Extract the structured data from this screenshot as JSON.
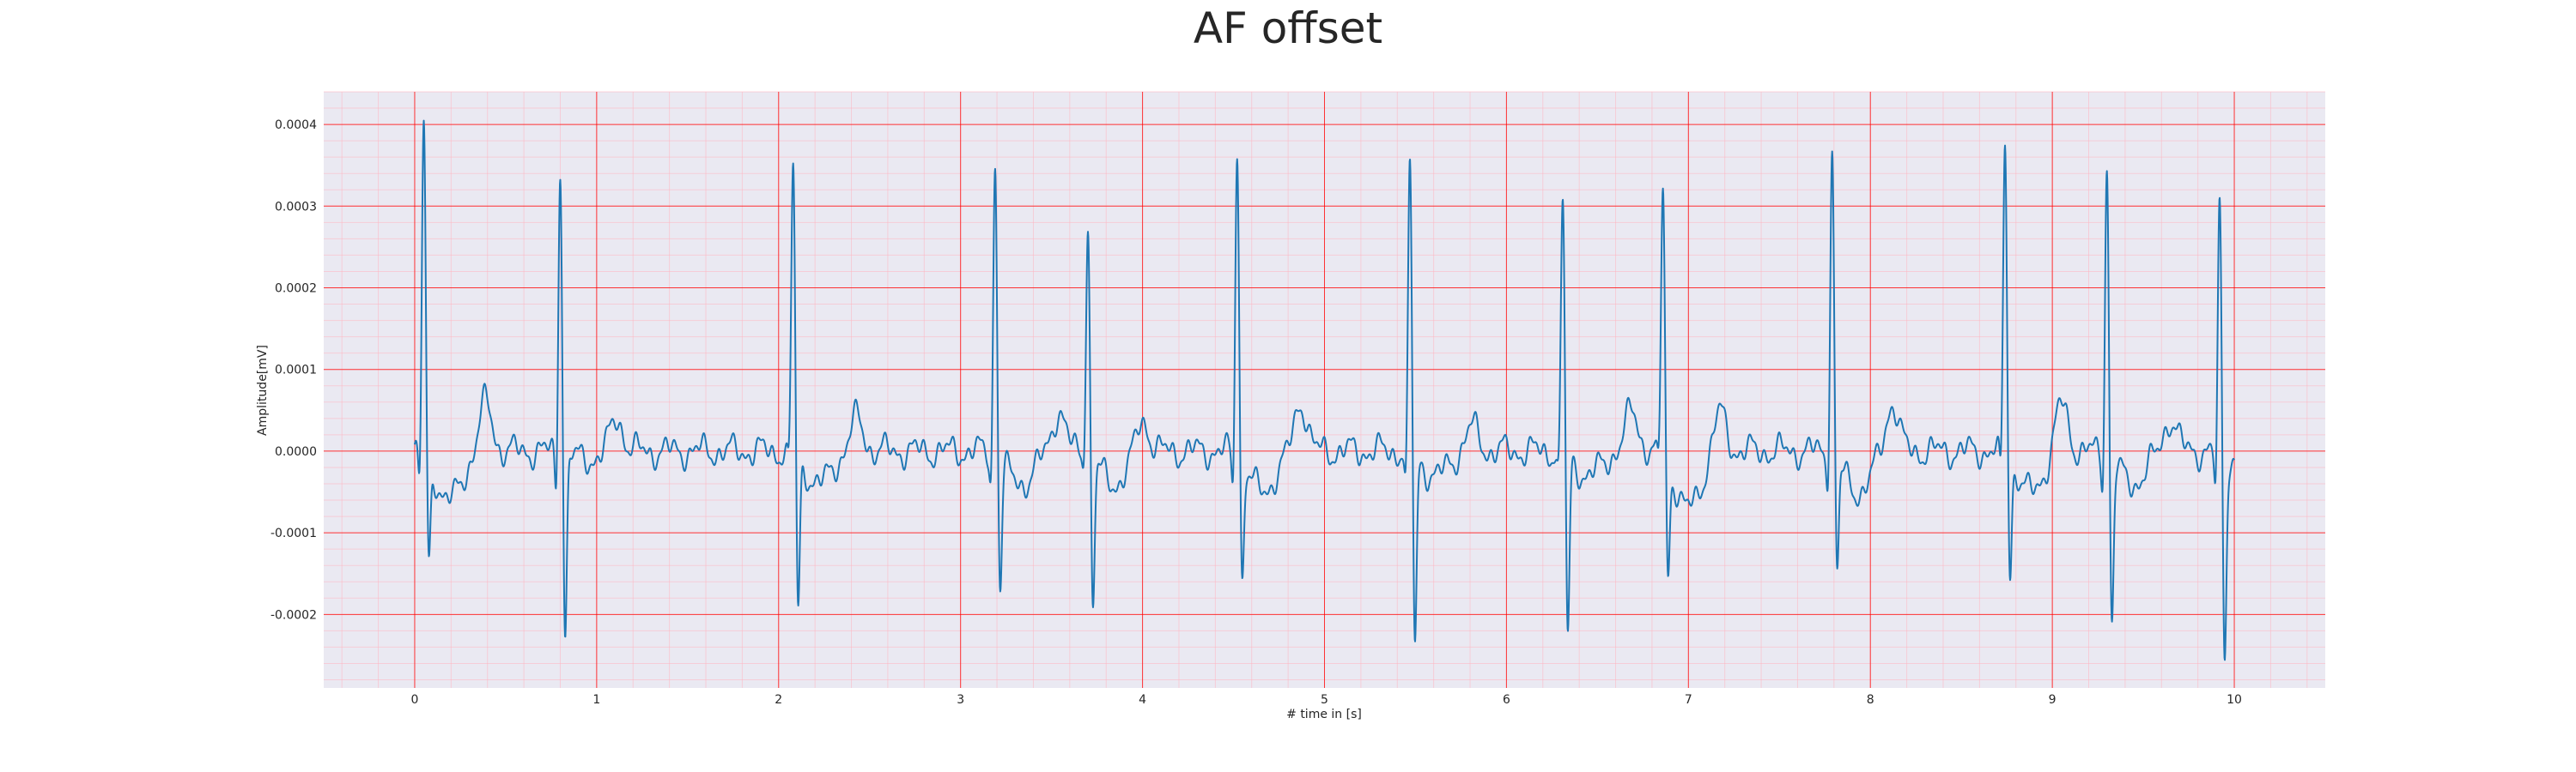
{
  "chart_data": {
    "type": "line",
    "title": "AF offset",
    "xlabel": "# time in [s]",
    "ylabel": "Amplitude[mV]",
    "xlim": [
      -0.5,
      10.5
    ],
    "ylim": [
      -0.00029,
      0.00044
    ],
    "x_ticks": [
      0,
      1,
      2,
      3,
      4,
      5,
      6,
      7,
      8,
      9,
      10
    ],
    "x_tick_labels": [
      "0",
      "1",
      "2",
      "3",
      "4",
      "5",
      "6",
      "7",
      "8",
      "9",
      "10"
    ],
    "y_ticks": [
      -0.0002,
      -0.0001,
      0.0,
      0.0001,
      0.0002,
      0.0003,
      0.0004
    ],
    "y_tick_labels": [
      "-0.0002",
      "-0.0001",
      "0.0000",
      "0.0001",
      "0.0002",
      "0.0003",
      "0.0004"
    ],
    "minor_grid_step_x": 0.2,
    "minor_grid_step_y": 2e-05,
    "grid": true,
    "beats": [
      {
        "t": 0.05,
        "r": 0.00041,
        "q": -7e-05,
        "s": -0.00014,
        "st": -6e-05
      },
      {
        "t": 0.8,
        "r": 0.00036,
        "q": -8e-05,
        "s": -0.00024,
        "st": -1e-05
      },
      {
        "t": 2.08,
        "r": 0.00036,
        "q": -4e-05,
        "s": -0.0002,
        "st": -4e-05
      },
      {
        "t": 3.19,
        "r": 0.00037,
        "q": -7e-05,
        "s": -0.00017,
        "st": -4e-05
      },
      {
        "t": 3.7,
        "r": 0.00029,
        "q": -3e-05,
        "s": -0.00019,
        "st": -4e-05
      },
      {
        "t": 4.52,
        "r": 0.00039,
        "q": -8e-05,
        "s": -0.00016,
        "st": -5e-05
      },
      {
        "t": 5.47,
        "r": 0.00036,
        "q": -7e-05,
        "s": -0.00025,
        "st": -3e-05
      },
      {
        "t": 6.31,
        "r": 0.00032,
        "q": -5e-05,
        "s": -0.00024,
        "st": -3e-05
      },
      {
        "t": 6.86,
        "r": 0.00034,
        "q": -4e-05,
        "s": -0.00015,
        "st": -7e-05
      },
      {
        "t": 7.79,
        "r": 0.00038,
        "q": -6e-05,
        "s": -0.00015,
        "st": -5e-05
      },
      {
        "t": 8.74,
        "r": 0.00039,
        "q": -6e-05,
        "s": -0.00015,
        "st": -5e-05
      },
      {
        "t": 9.3,
        "r": 0.00037,
        "q": -7e-05,
        "s": -0.00022,
        "st": -4e-05
      },
      {
        "t": 9.92,
        "r": 0.00031,
        "q": -8e-05,
        "s": -0.00026,
        "st": -2e-05
      }
    ],
    "t_waves": [
      {
        "t": 0.39,
        "a": 6e-05
      },
      {
        "t": 1.11,
        "a": 4e-05
      },
      {
        "t": 2.43,
        "a": 4e-05
      },
      {
        "t": 3.54,
        "a": 5e-05
      },
      {
        "t": 4.0,
        "a": 4e-05
      },
      {
        "t": 4.87,
        "a": 6e-05
      },
      {
        "t": 5.81,
        "a": 3e-05
      },
      {
        "t": 6.69,
        "a": 5e-05
      },
      {
        "t": 7.17,
        "a": 5e-05
      },
      {
        "t": 8.12,
        "a": 6e-05
      },
      {
        "t": 9.05,
        "a": 6e-05
      },
      {
        "t": 9.65,
        "a": 4e-05
      }
    ],
    "colors": {
      "line": "#1f77b4",
      "plot_background": "#eae9f2",
      "major_grid": "#ff0000",
      "minor_grid": "#ffb6c1",
      "text": "#262626"
    }
  }
}
